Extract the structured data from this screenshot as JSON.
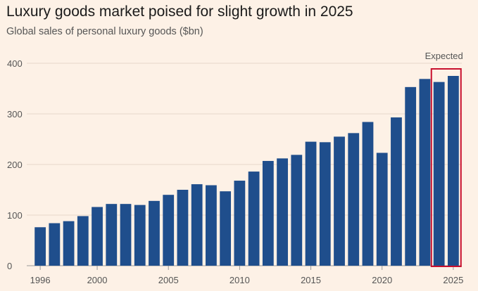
{
  "chart_data": {
    "type": "bar",
    "title": "Luxury goods market poised for slight growth in 2025",
    "subtitle": "Global sales of personal luxury goods ($bn)",
    "x": [
      1996,
      1997,
      1998,
      1999,
      2000,
      2001,
      2002,
      2003,
      2004,
      2005,
      2006,
      2007,
      2008,
      2009,
      2010,
      2011,
      2012,
      2013,
      2014,
      2015,
      2016,
      2017,
      2018,
      2019,
      2020,
      2021,
      2022,
      2023,
      2024,
      2025
    ],
    "values": [
      76,
      84,
      88,
      98,
      116,
      122,
      122,
      120,
      128,
      140,
      150,
      161,
      159,
      147,
      168,
      186,
      207,
      212,
      219,
      245,
      244,
      255,
      262,
      284,
      223,
      293,
      353,
      369,
      363,
      375
    ],
    "ylim": [
      0,
      400
    ],
    "yticks": [
      0,
      100,
      200,
      300,
      400
    ],
    "xticks": [
      1996,
      2000,
      2005,
      2010,
      2015,
      2020,
      2025
    ],
    "grid": true,
    "bar_color": "#1f4e8c",
    "annotation": {
      "label": "Expected",
      "highlight_years": [
        2024,
        2025
      ],
      "color": "#c8102e"
    }
  }
}
